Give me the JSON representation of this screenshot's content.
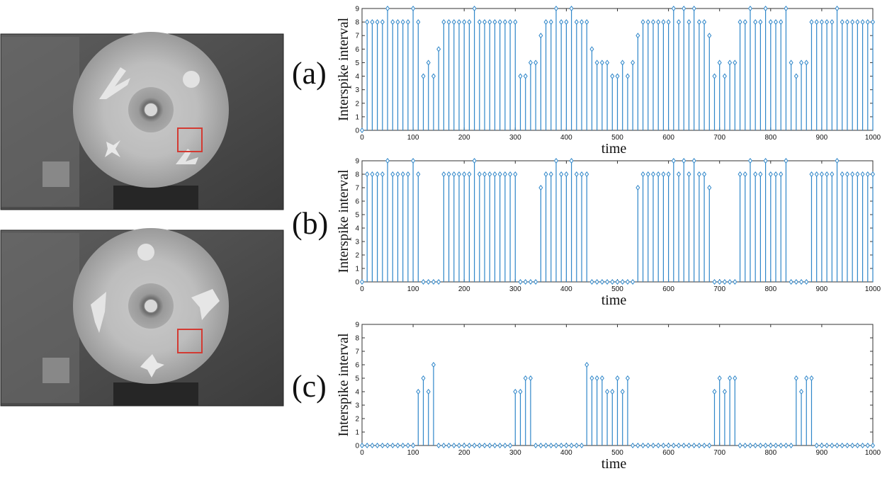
{
  "images": [
    {
      "id": "photo-top",
      "description_name": "rotating disc grayscale frame 1"
    },
    {
      "id": "photo-bottom",
      "description_name": "rotating disc grayscale frame 2"
    }
  ],
  "colors": {
    "stem": "#2e86c9",
    "box": "#d33a32",
    "axis": "#333333"
  },
  "chart_data": [
    {
      "type": "stem",
      "panel_label": "(a)",
      "xlabel": "time",
      "ylabel": "Interspike interval",
      "xlim": [
        0,
        1000
      ],
      "ylim": [
        0,
        9
      ],
      "xticks": [
        "0",
        "100",
        "200",
        "300",
        "400",
        "500",
        "600",
        "700",
        "800",
        "900",
        "1000"
      ],
      "yticks": [
        "0",
        "1",
        "2",
        "3",
        "4",
        "5",
        "6",
        "7",
        "8",
        "9"
      ],
      "x_start": 0,
      "x_step": 10,
      "values": [
        0,
        8,
        8,
        8,
        8,
        9,
        8,
        8,
        8,
        8,
        9,
        8,
        4,
        5,
        4,
        6,
        8,
        8,
        8,
        8,
        8,
        8,
        9,
        8,
        8,
        8,
        8,
        8,
        8,
        8,
        8,
        4,
        4,
        5,
        5,
        7,
        8,
        8,
        9,
        8,
        8,
        9,
        8,
        8,
        8,
        6,
        5,
        5,
        5,
        4,
        4,
        5,
        4,
        5,
        7,
        8,
        8,
        8,
        8,
        8,
        8,
        9,
        8,
        9,
        8,
        9,
        8,
        8,
        7,
        4,
        5,
        4,
        5,
        5,
        8,
        8,
        9,
        8,
        8,
        9,
        8,
        8,
        8,
        9,
        5,
        4,
        5,
        5,
        8,
        8,
        8,
        8,
        8,
        9,
        8,
        8,
        8,
        8,
        8,
        8,
        8
      ]
    },
    {
      "type": "stem",
      "panel_label": "(b)",
      "xlabel": "time",
      "ylabel": "Interspike interval",
      "xlim": [
        0,
        1000
      ],
      "ylim": [
        0,
        9
      ],
      "xticks": [
        "0",
        "100",
        "200",
        "300",
        "400",
        "500",
        "600",
        "700",
        "800",
        "900",
        "1000"
      ],
      "yticks": [
        "0",
        "1",
        "2",
        "3",
        "4",
        "5",
        "6",
        "7",
        "8",
        "9"
      ],
      "x_start": 0,
      "x_step": 10,
      "values": [
        0,
        8,
        8,
        8,
        8,
        9,
        8,
        8,
        8,
        8,
        9,
        8,
        0,
        0,
        0,
        0,
        8,
        8,
        8,
        8,
        8,
        8,
        9,
        8,
        8,
        8,
        8,
        8,
        8,
        8,
        8,
        0,
        0,
        0,
        0,
        7,
        8,
        8,
        9,
        8,
        8,
        9,
        8,
        8,
        8,
        0,
        0,
        0,
        0,
        0,
        0,
        0,
        0,
        0,
        7,
        8,
        8,
        8,
        8,
        8,
        8,
        9,
        8,
        9,
        8,
        9,
        8,
        8,
        7,
        0,
        0,
        0,
        0,
        0,
        8,
        8,
        9,
        8,
        8,
        9,
        8,
        8,
        8,
        9,
        0,
        0,
        0,
        0,
        8,
        8,
        8,
        8,
        8,
        9,
        8,
        8,
        8,
        8,
        8,
        8,
        8
      ]
    },
    {
      "type": "stem",
      "panel_label": "(c)",
      "xlabel": "time",
      "ylabel": "Interspike interval",
      "xlim": [
        0,
        1000
      ],
      "ylim": [
        0,
        9
      ],
      "xticks": [
        "0",
        "100",
        "200",
        "300",
        "400",
        "500",
        "600",
        "700",
        "800",
        "900",
        "1000"
      ],
      "yticks": [
        "0",
        "1",
        "2",
        "3",
        "4",
        "5",
        "6",
        "7",
        "8",
        "9"
      ],
      "x_start": 0,
      "x_step": 10,
      "values": [
        0,
        0,
        0,
        0,
        0,
        0,
        0,
        0,
        0,
        0,
        0,
        4,
        5,
        4,
        6,
        0,
        0,
        0,
        0,
        0,
        0,
        0,
        0,
        0,
        0,
        0,
        0,
        0,
        0,
        0,
        4,
        4,
        5,
        5,
        0,
        0,
        0,
        0,
        0,
        0,
        0,
        0,
        0,
        0,
        6,
        5,
        5,
        5,
        4,
        4,
        5,
        4,
        5,
        0,
        0,
        0,
        0,
        0,
        0,
        0,
        0,
        0,
        0,
        0,
        0,
        0,
        0,
        0,
        0,
        4,
        5,
        4,
        5,
        5,
        0,
        0,
        0,
        0,
        0,
        0,
        0,
        0,
        0,
        0,
        0,
        5,
        4,
        5,
        5,
        0,
        0,
        0,
        0,
        0,
        0,
        0,
        0,
        0,
        0,
        0,
        0
      ]
    }
  ]
}
